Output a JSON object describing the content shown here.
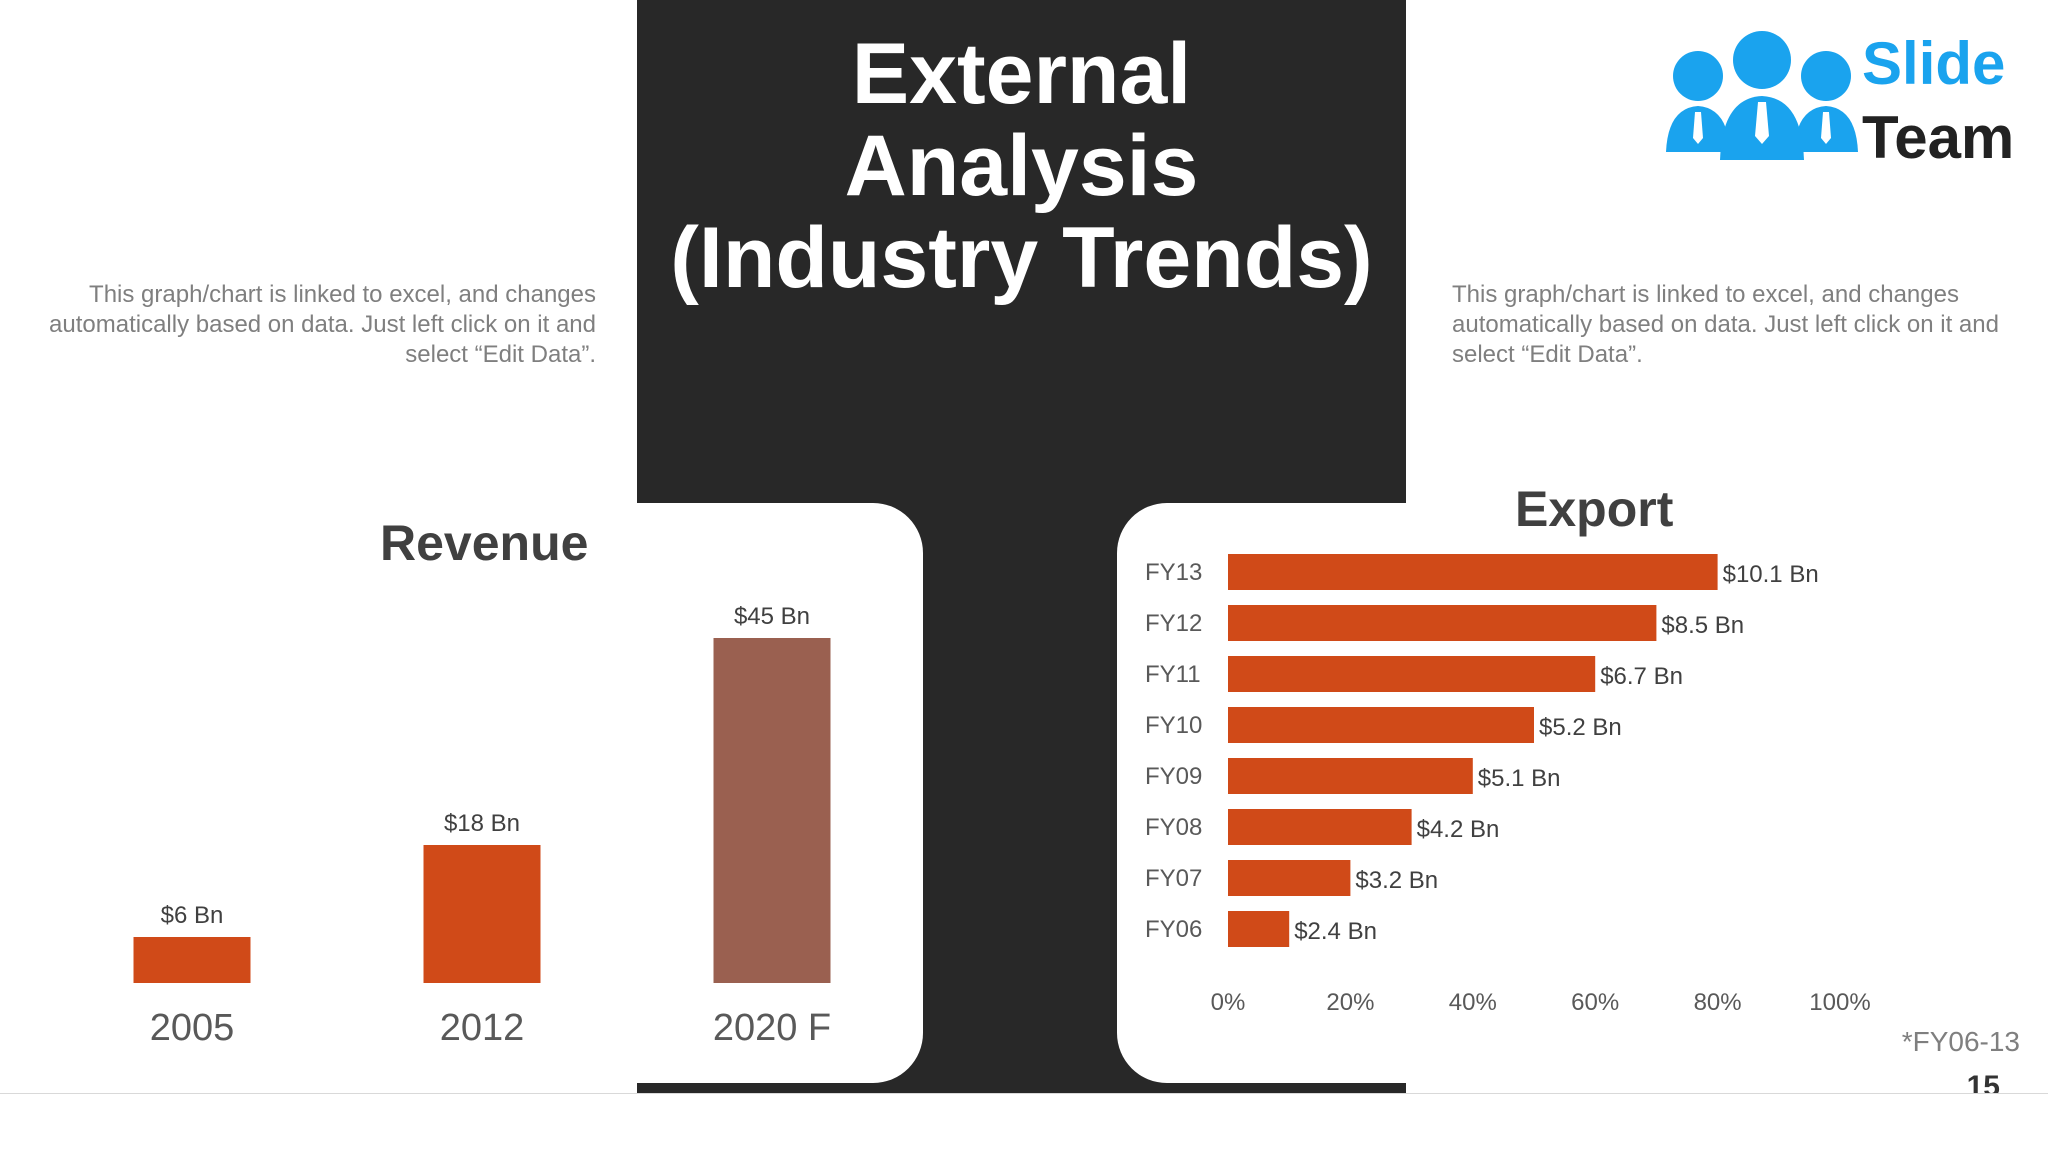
{
  "title_lines": [
    "External",
    "Analysis",
    "(Industry Trends)"
  ],
  "description_left": "This graph/chart is linked to excel, and changes automatically based on data. Just left click on it and select “Edit Data”.",
  "description_right": "This graph/chart is linked to excel, and changes automatically based on data. Just left click on it and select “Edit Data”.",
  "logo": {
    "word1": "Slide",
    "word2": "Team",
    "icon": "people-group-icon",
    "color": "#1aa3ee"
  },
  "footnote": "*FY06-13",
  "page_number": "15",
  "colors": {
    "accent": "#d04a18",
    "forecast": "#9a6050",
    "dark": "#282828",
    "text_gray": "#7f7f7f"
  },
  "chart_data": [
    {
      "type": "bar",
      "title": "Revenue",
      "categories": [
        "2005",
        "2012",
        "2020 F"
      ],
      "values": [
        6,
        18,
        45
      ],
      "data_labels": [
        "$6 Bn",
        "$18 Bn",
        "$45 Bn"
      ],
      "colors": [
        "#d04a18",
        "#d04a18",
        "#9a6050"
      ],
      "ylim": [
        0,
        45
      ],
      "grid": false
    },
    {
      "type": "bar",
      "orientation": "horizontal",
      "title": "Export",
      "categories": [
        "FY13",
        "FY12",
        "FY11",
        "FY10",
        "FY09",
        "FY08",
        "FY07",
        "FY06"
      ],
      "values": [
        80,
        70,
        60,
        50,
        40,
        30,
        20,
        10
      ],
      "data_labels": [
        "$10.1 Bn",
        "$8.5 Bn",
        "$6.7 Bn",
        "$5.2 Bn",
        "$5.1 Bn",
        "$4.2 Bn",
        "$3.2 Bn",
        "$2.4 Bn"
      ],
      "x_ticks": [
        "0%",
        "20%",
        "40%",
        "60%",
        "80%",
        "100%"
      ],
      "xlim": [
        0,
        100
      ],
      "color": "#d04a18",
      "grid": false
    }
  ]
}
